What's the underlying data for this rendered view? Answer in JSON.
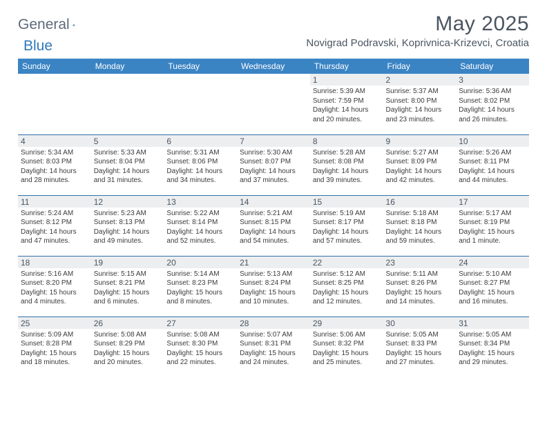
{
  "logo": {
    "part1": "General",
    "part2": "Blue"
  },
  "title": "May 2025",
  "location": "Novigrad Podravski, Koprivnica-Krizevci, Croatia",
  "dayHeaders": [
    "Sunday",
    "Monday",
    "Tuesday",
    "Wednesday",
    "Thursday",
    "Friday",
    "Saturday"
  ],
  "colors": {
    "headerBg": "#3b84c4",
    "headerText": "#ffffff",
    "dayStripe": "#eceef0",
    "ruleColor": "#2f6fa6",
    "titleColor": "#4a5560",
    "bodyText": "#3a3a3a",
    "logoGray": "#5c6a77",
    "logoBlue": "#2f78ba"
  },
  "weeks": [
    [
      {
        "day": "",
        "lines": [
          "",
          "",
          "",
          ""
        ]
      },
      {
        "day": "",
        "lines": [
          "",
          "",
          "",
          ""
        ]
      },
      {
        "day": "",
        "lines": [
          "",
          "",
          "",
          ""
        ]
      },
      {
        "day": "",
        "lines": [
          "",
          "",
          "",
          ""
        ]
      },
      {
        "day": "1",
        "lines": [
          "Sunrise: 5:39 AM",
          "Sunset: 7:59 PM",
          "Daylight: 14 hours",
          "and 20 minutes."
        ]
      },
      {
        "day": "2",
        "lines": [
          "Sunrise: 5:37 AM",
          "Sunset: 8:00 PM",
          "Daylight: 14 hours",
          "and 23 minutes."
        ]
      },
      {
        "day": "3",
        "lines": [
          "Sunrise: 5:36 AM",
          "Sunset: 8:02 PM",
          "Daylight: 14 hours",
          "and 26 minutes."
        ]
      }
    ],
    [
      {
        "day": "4",
        "lines": [
          "Sunrise: 5:34 AM",
          "Sunset: 8:03 PM",
          "Daylight: 14 hours",
          "and 28 minutes."
        ]
      },
      {
        "day": "5",
        "lines": [
          "Sunrise: 5:33 AM",
          "Sunset: 8:04 PM",
          "Daylight: 14 hours",
          "and 31 minutes."
        ]
      },
      {
        "day": "6",
        "lines": [
          "Sunrise: 5:31 AM",
          "Sunset: 8:06 PM",
          "Daylight: 14 hours",
          "and 34 minutes."
        ]
      },
      {
        "day": "7",
        "lines": [
          "Sunrise: 5:30 AM",
          "Sunset: 8:07 PM",
          "Daylight: 14 hours",
          "and 37 minutes."
        ]
      },
      {
        "day": "8",
        "lines": [
          "Sunrise: 5:28 AM",
          "Sunset: 8:08 PM",
          "Daylight: 14 hours",
          "and 39 minutes."
        ]
      },
      {
        "day": "9",
        "lines": [
          "Sunrise: 5:27 AM",
          "Sunset: 8:09 PM",
          "Daylight: 14 hours",
          "and 42 minutes."
        ]
      },
      {
        "day": "10",
        "lines": [
          "Sunrise: 5:26 AM",
          "Sunset: 8:11 PM",
          "Daylight: 14 hours",
          "and 44 minutes."
        ]
      }
    ],
    [
      {
        "day": "11",
        "lines": [
          "Sunrise: 5:24 AM",
          "Sunset: 8:12 PM",
          "Daylight: 14 hours",
          "and 47 minutes."
        ]
      },
      {
        "day": "12",
        "lines": [
          "Sunrise: 5:23 AM",
          "Sunset: 8:13 PM",
          "Daylight: 14 hours",
          "and 49 minutes."
        ]
      },
      {
        "day": "13",
        "lines": [
          "Sunrise: 5:22 AM",
          "Sunset: 8:14 PM",
          "Daylight: 14 hours",
          "and 52 minutes."
        ]
      },
      {
        "day": "14",
        "lines": [
          "Sunrise: 5:21 AM",
          "Sunset: 8:15 PM",
          "Daylight: 14 hours",
          "and 54 minutes."
        ]
      },
      {
        "day": "15",
        "lines": [
          "Sunrise: 5:19 AM",
          "Sunset: 8:17 PM",
          "Daylight: 14 hours",
          "and 57 minutes."
        ]
      },
      {
        "day": "16",
        "lines": [
          "Sunrise: 5:18 AM",
          "Sunset: 8:18 PM",
          "Daylight: 14 hours",
          "and 59 minutes."
        ]
      },
      {
        "day": "17",
        "lines": [
          "Sunrise: 5:17 AM",
          "Sunset: 8:19 PM",
          "Daylight: 15 hours",
          "and 1 minute."
        ]
      }
    ],
    [
      {
        "day": "18",
        "lines": [
          "Sunrise: 5:16 AM",
          "Sunset: 8:20 PM",
          "Daylight: 15 hours",
          "and 4 minutes."
        ]
      },
      {
        "day": "19",
        "lines": [
          "Sunrise: 5:15 AM",
          "Sunset: 8:21 PM",
          "Daylight: 15 hours",
          "and 6 minutes."
        ]
      },
      {
        "day": "20",
        "lines": [
          "Sunrise: 5:14 AM",
          "Sunset: 8:23 PM",
          "Daylight: 15 hours",
          "and 8 minutes."
        ]
      },
      {
        "day": "21",
        "lines": [
          "Sunrise: 5:13 AM",
          "Sunset: 8:24 PM",
          "Daylight: 15 hours",
          "and 10 minutes."
        ]
      },
      {
        "day": "22",
        "lines": [
          "Sunrise: 5:12 AM",
          "Sunset: 8:25 PM",
          "Daylight: 15 hours",
          "and 12 minutes."
        ]
      },
      {
        "day": "23",
        "lines": [
          "Sunrise: 5:11 AM",
          "Sunset: 8:26 PM",
          "Daylight: 15 hours",
          "and 14 minutes."
        ]
      },
      {
        "day": "24",
        "lines": [
          "Sunrise: 5:10 AM",
          "Sunset: 8:27 PM",
          "Daylight: 15 hours",
          "and 16 minutes."
        ]
      }
    ],
    [
      {
        "day": "25",
        "lines": [
          "Sunrise: 5:09 AM",
          "Sunset: 8:28 PM",
          "Daylight: 15 hours",
          "and 18 minutes."
        ]
      },
      {
        "day": "26",
        "lines": [
          "Sunrise: 5:08 AM",
          "Sunset: 8:29 PM",
          "Daylight: 15 hours",
          "and 20 minutes."
        ]
      },
      {
        "day": "27",
        "lines": [
          "Sunrise: 5:08 AM",
          "Sunset: 8:30 PM",
          "Daylight: 15 hours",
          "and 22 minutes."
        ]
      },
      {
        "day": "28",
        "lines": [
          "Sunrise: 5:07 AM",
          "Sunset: 8:31 PM",
          "Daylight: 15 hours",
          "and 24 minutes."
        ]
      },
      {
        "day": "29",
        "lines": [
          "Sunrise: 5:06 AM",
          "Sunset: 8:32 PM",
          "Daylight: 15 hours",
          "and 25 minutes."
        ]
      },
      {
        "day": "30",
        "lines": [
          "Sunrise: 5:05 AM",
          "Sunset: 8:33 PM",
          "Daylight: 15 hours",
          "and 27 minutes."
        ]
      },
      {
        "day": "31",
        "lines": [
          "Sunrise: 5:05 AM",
          "Sunset: 8:34 PM",
          "Daylight: 15 hours",
          "and 29 minutes."
        ]
      }
    ]
  ]
}
